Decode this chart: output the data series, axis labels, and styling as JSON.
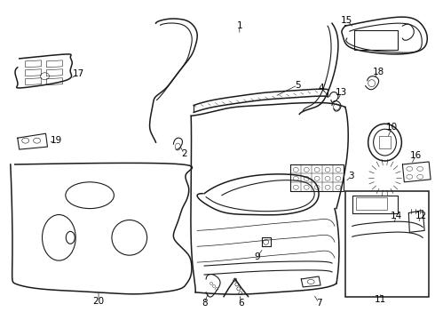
{
  "background_color": "#ffffff",
  "line_color": "#1a1a1a",
  "label_color": "#000000",
  "fig_width": 4.9,
  "fig_height": 3.6,
  "dpi": 100,
  "label_fontsize": 7.5
}
